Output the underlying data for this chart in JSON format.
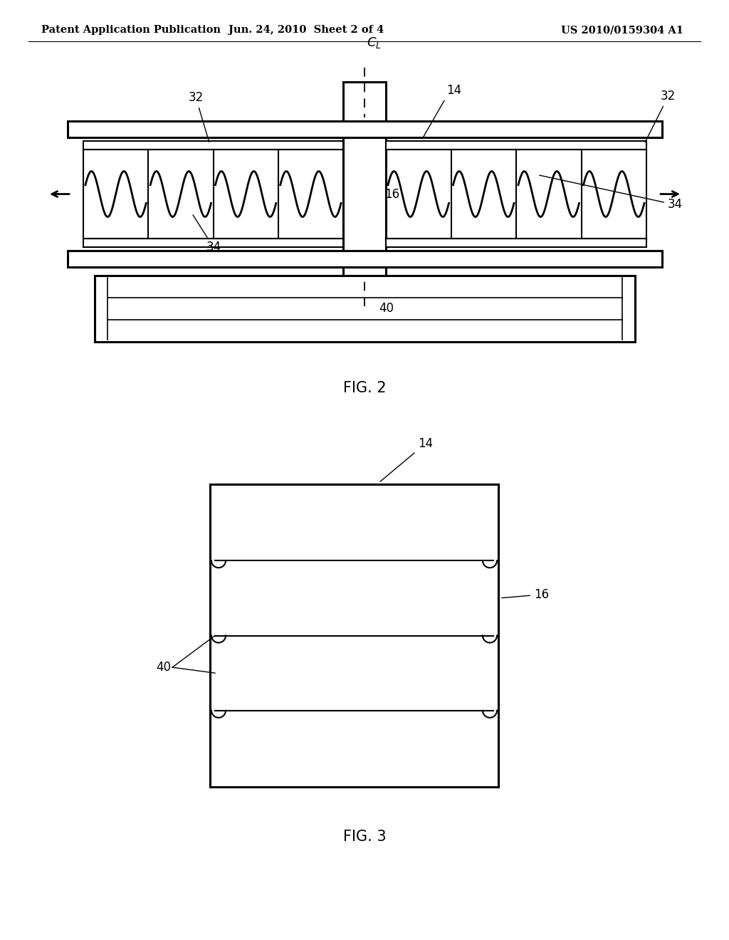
{
  "bg_color": "#ffffff",
  "line_color": "#000000",
  "header_left": "Patent Application Publication",
  "header_center": "Jun. 24, 2010  Sheet 2 of 4",
  "header_right": "US 2010/0159304 A1",
  "fig2_label": "FIG. 2",
  "fig3_label": "FIG. 3"
}
